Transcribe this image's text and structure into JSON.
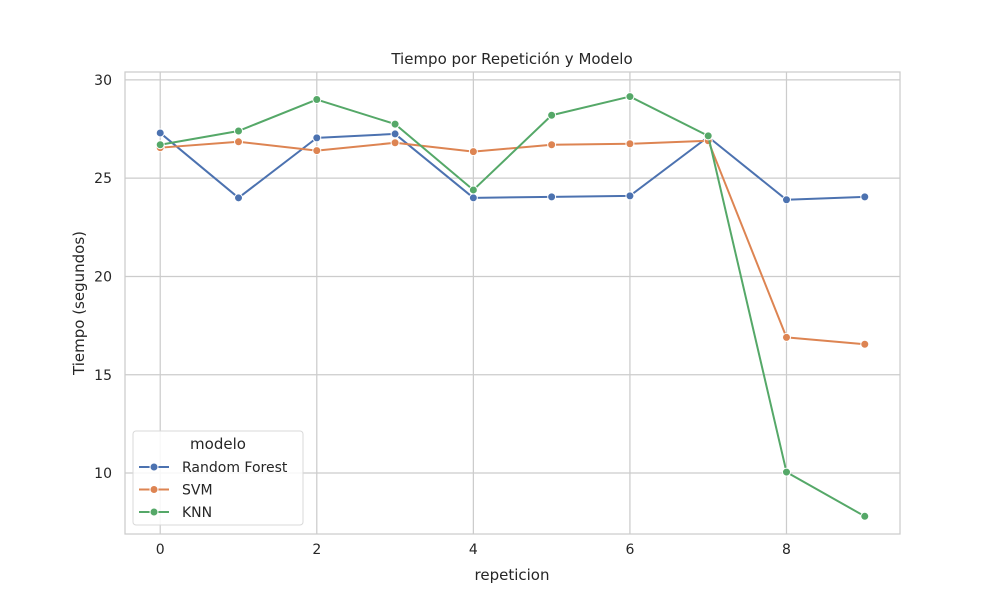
{
  "chart_data": {
    "type": "line",
    "title": "Tiempo por Repetición y Modelo",
    "xlabel": "repeticion",
    "ylabel": "Tiempo (segundos)",
    "x": [
      0,
      1,
      2,
      3,
      4,
      5,
      6,
      7,
      8,
      9
    ],
    "xlim": [
      -0.45,
      9.45
    ],
    "ylim": [
      6.9,
      30.4
    ],
    "xticks": [
      0,
      2,
      4,
      6,
      8
    ],
    "yticks": [
      10,
      15,
      20,
      25,
      30
    ],
    "grid": true,
    "legend": {
      "title": "modelo",
      "placement": "lower-left"
    },
    "series": [
      {
        "name": "Random Forest",
        "color": "#4c72b0",
        "values": [
          27.3,
          24.0,
          27.05,
          27.25,
          24.0,
          24.05,
          24.1,
          27.1,
          23.9,
          24.05
        ]
      },
      {
        "name": "SVM",
        "color": "#dd8452",
        "values": [
          26.55,
          26.85,
          26.4,
          26.8,
          26.35,
          26.7,
          26.75,
          26.9,
          16.9,
          16.55
        ]
      },
      {
        "name": "KNN",
        "color": "#55a868",
        "values": [
          26.7,
          27.4,
          29.0,
          27.75,
          24.4,
          28.2,
          29.15,
          27.15,
          10.05,
          7.8
        ]
      }
    ]
  }
}
